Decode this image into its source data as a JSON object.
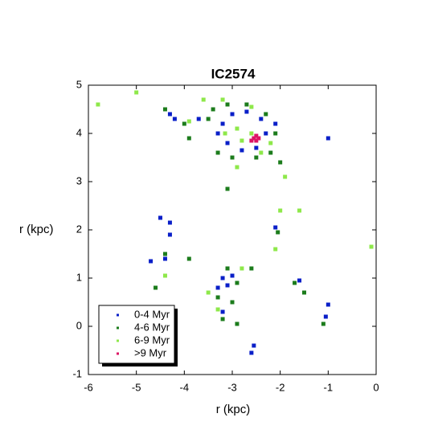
{
  "chart_data": {
    "type": "scatter",
    "title": "IC2574",
    "x_label": "r (kpc)",
    "y_label": "r (kpc)",
    "xlim": [
      -6,
      0
    ],
    "ylim": [
      -1,
      5
    ],
    "xticks": [
      -6,
      -5,
      -4,
      -3,
      -2,
      -1,
      0
    ],
    "yticks": [
      -1,
      0,
      1,
      2,
      3,
      4,
      5
    ],
    "legend": "lower left",
    "series": [
      {
        "name": "0-4 Myr",
        "color": "#0a1fc8",
        "x": [
          -3.2,
          -3.0,
          -2.7,
          -2.4,
          -2.3,
          -2.5,
          -2.8,
          -3.1,
          -3.3,
          -4.3,
          -4.2,
          -3.7,
          -2.1,
          -1.0,
          -4.5,
          -4.3,
          -4.3,
          -2.1,
          -3.2,
          -3.1,
          -3.3,
          -3.0,
          -1.6,
          -4.4,
          -4.7,
          -3.2,
          -1.0,
          -1.05,
          -2.6,
          -2.55
        ],
        "y": [
          4.2,
          4.4,
          4.45,
          4.3,
          4.0,
          3.7,
          3.65,
          3.8,
          4.0,
          4.4,
          4.3,
          4.3,
          4.2,
          3.9,
          2.25,
          2.15,
          1.9,
          2.05,
          1.0,
          0.85,
          0.8,
          1.05,
          0.95,
          1.4,
          1.35,
          0.3,
          0.45,
          0.2,
          -0.55,
          -0.4
        ]
      },
      {
        "name": "4-6 Myr",
        "color": "#1c7c1c",
        "x": [
          -3.4,
          -3.1,
          -2.7,
          -2.3,
          -2.1,
          -2.2,
          -2.5,
          -3.0,
          -3.3,
          -3.5,
          -4.4,
          -4.0,
          -3.9,
          -2.0,
          -3.1,
          -2.05,
          -3.1,
          -2.9,
          -3.3,
          -3.0,
          -3.2,
          -1.7,
          -1.5,
          -4.6,
          -4.4,
          -2.9,
          -1.1,
          -3.9,
          -2.6
        ],
        "y": [
          4.5,
          4.6,
          4.6,
          4.4,
          4.0,
          3.6,
          3.5,
          3.5,
          3.6,
          4.3,
          4.5,
          4.2,
          3.9,
          3.4,
          2.85,
          1.95,
          1.2,
          0.9,
          0.6,
          0.5,
          0.15,
          0.9,
          0.7,
          0.8,
          1.5,
          0.05,
          0.05,
          1.4,
          1.2
        ]
      },
      {
        "name": "6-9 Myr",
        "color": "#8ee84a",
        "x": [
          -3.6,
          -3.2,
          -2.6,
          -2.9,
          -2.6,
          -2.2,
          -2.8,
          -3.15,
          -2.9,
          -5.8,
          -5.0,
          -2.0,
          -1.6,
          -1.9,
          -3.5,
          -3.3,
          -2.8,
          -4.4,
          -2.1,
          -0.1,
          -3.9,
          -2.4
        ],
        "y": [
          4.7,
          4.7,
          4.55,
          4.1,
          4.0,
          3.8,
          3.85,
          4.0,
          3.3,
          4.6,
          4.85,
          2.4,
          2.4,
          3.1,
          0.7,
          0.35,
          1.2,
          1.05,
          1.6,
          1.65,
          4.25,
          3.6
        ]
      },
      {
        "name": ">9 Myr",
        "color": "#dc1464",
        "x": [
          -2.55,
          -2.5,
          -2.45,
          -2.5,
          -2.6
        ],
        "y": [
          3.9,
          3.85,
          3.9,
          3.95,
          3.85
        ]
      }
    ]
  }
}
